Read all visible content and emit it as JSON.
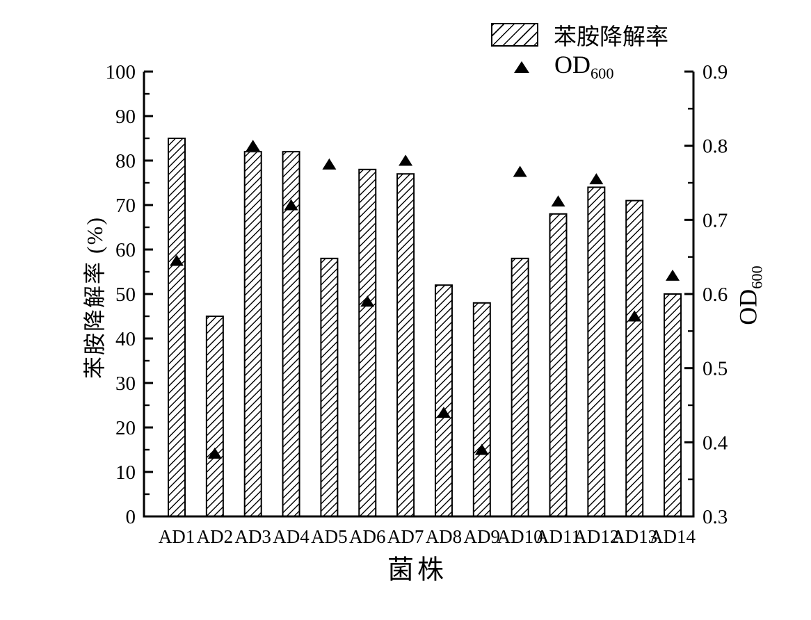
{
  "figure": {
    "background": "#ffffff",
    "ink_color": "#000000"
  },
  "chart_data": {
    "type": "bar",
    "title": "",
    "categories": [
      "AD1",
      "AD2",
      "AD3",
      "AD4",
      "AD5",
      "AD6",
      "AD7",
      "AD8",
      "AD9",
      "AD10",
      "AD11",
      "AD12",
      "AD13",
      "AD14"
    ],
    "series": [
      {
        "name": "苯胺降解率",
        "type": "bar",
        "axis": "left",
        "style": "diagonal-hatch",
        "values": [
          85,
          45,
          82,
          82,
          58,
          78,
          77,
          52,
          48,
          58,
          68,
          74,
          71,
          50
        ]
      },
      {
        "name": "OD600",
        "type": "scatter",
        "axis": "right",
        "marker": "filled-triangle",
        "values": [
          0.645,
          0.385,
          0.8,
          0.72,
          0.775,
          0.59,
          0.78,
          0.44,
          0.39,
          0.765,
          0.725,
          0.755,
          0.57,
          0.625
        ]
      }
    ],
    "left_axis": {
      "label": "苯胺降解率 (%)",
      "min": 0,
      "max": 100,
      "major_step": 10,
      "minor_step": 5,
      "tick_labels": [
        "0",
        "10",
        "20",
        "30",
        "40",
        "50",
        "60",
        "70",
        "80",
        "90",
        "100"
      ]
    },
    "right_axis": {
      "label_main": "OD",
      "label_sub": "600",
      "min": 0.3,
      "max": 0.9,
      "major_step": 0.1,
      "minor_step": 0.05,
      "tick_labels": [
        "0.3",
        "0.4",
        "0.5",
        "0.6",
        "0.7",
        "0.8",
        "0.9"
      ]
    },
    "x_axis": {
      "label": "菌株"
    },
    "legend": {
      "bar_label": "苯胺降解率",
      "scatter_label_main": "OD",
      "scatter_label_sub": "600",
      "position": "top-right"
    },
    "grid": false
  }
}
